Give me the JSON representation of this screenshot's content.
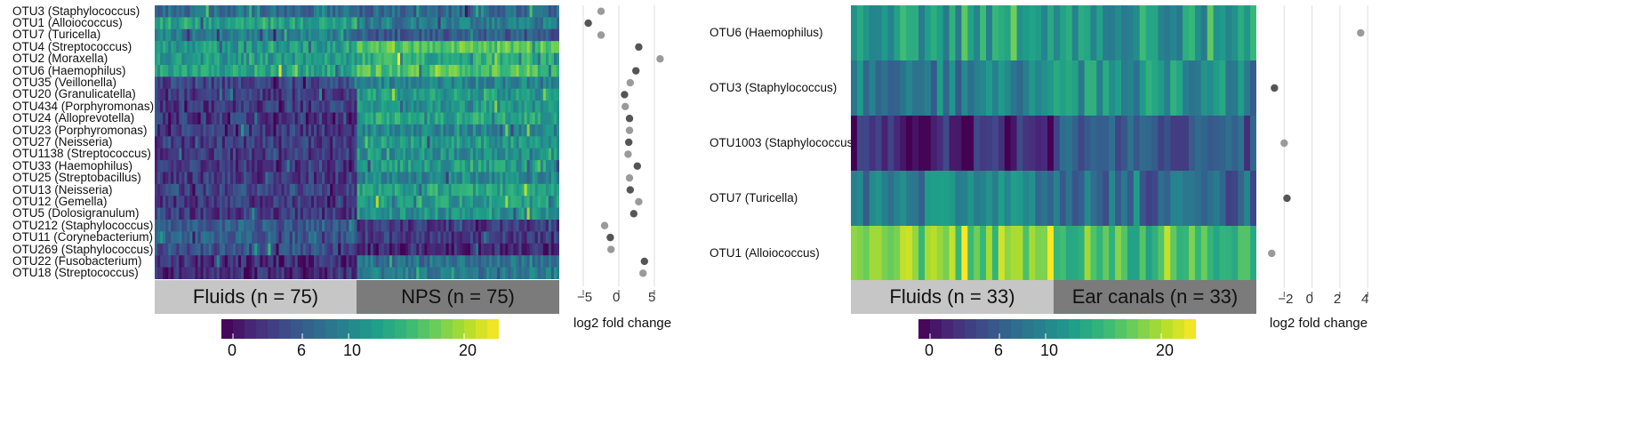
{
  "chart_data": [
    {
      "type": "heatmap",
      "rows": [
        "OTU3 (Staphylococcus)",
        "OTU1 (Alloiococcus)",
        "OTU7 (Turicella)",
        "OTU4 (Streptococcus)",
        "OTU2 (Moraxella)",
        "OTU6 (Haemophilus)",
        "OTU35 (Veillonella)",
        "OTU20 (Granulicatella)",
        "OTU434 (Porphyromonas)",
        "OTU24 (Alloprevotella)",
        "OTU23 (Porphyromonas)",
        "OTU27 (Neisseria)",
        "OTU1138 (Streptococcus)",
        "OTU33 (Haemophilus)",
        "OTU25 (Streptobacillus)",
        "OTU13 (Neisseria)",
        "OTU12 (Gemella)",
        "OTU5 (Dolosigranulum)",
        "OTU212 (Staphylococcus)",
        "OTU11 (Corynebacterium)",
        "OTU269 (Staphylococcus)",
        "OTU22 (Fusobacterium)",
        "OTU18 (Streptococcus)"
      ],
      "row_mean": [
        [
          8,
          7
        ],
        [
          13,
          9
        ],
        [
          9,
          6
        ],
        [
          12,
          17
        ],
        [
          12,
          14
        ],
        [
          13,
          16
        ],
        [
          4,
          10
        ],
        [
          3,
          12
        ],
        [
          3,
          11
        ],
        [
          3,
          13
        ],
        [
          3,
          10
        ],
        [
          3,
          12
        ],
        [
          3,
          11
        ],
        [
          3,
          12
        ],
        [
          3,
          10
        ],
        [
          4,
          13
        ],
        [
          3,
          12
        ],
        [
          3,
          11
        ],
        [
          6,
          3
        ],
        [
          6,
          3
        ],
        [
          5,
          2
        ],
        [
          2,
          8
        ],
        [
          2,
          9
        ]
      ],
      "groups": [
        "Fluids (n = 75)",
        "NPS (n = 75)"
      ],
      "group_colors": [
        "#c6c6c6",
        "#7b7b7b"
      ],
      "colorbar_ticks": [
        0,
        6,
        10,
        20
      ],
      "colorbar_range": [
        -1,
        23
      ],
      "fold_change": [
        -2.5,
        -4.3,
        -2.5,
        2.8,
        5.8,
        2.4,
        1.6,
        0.8,
        0.9,
        1.5,
        1.5,
        1.4,
        1.3,
        2.6,
        1.5,
        1.6,
        2.8,
        2.1,
        -2.0,
        -1.2,
        -1.1,
        3.6,
        3.4
      ],
      "fc_point_colors": [
        "#9a9a9a",
        "#555555",
        "#9a9a9a",
        "#555555",
        "#9a9a9a",
        "#555555",
        "#9a9a9a",
        "#555555",
        "#9a9a9a",
        "#555555",
        "#9a9a9a",
        "#555555",
        "#9a9a9a",
        "#555555",
        "#9a9a9a",
        "#555555",
        "#9a9a9a",
        "#555555",
        "#9a9a9a",
        "#555555",
        "#9a9a9a",
        "#555555",
        "#9a9a9a"
      ],
      "fc_xlim": [
        -6.5,
        6.5
      ],
      "fc_ticks": [
        -5,
        0,
        5
      ],
      "fc_tick_labels": [
        "−5",
        "0",
        "5"
      ],
      "xlabel": "log2 fold change",
      "gridlines": true
    },
    {
      "type": "heatmap",
      "rows": [
        "OTU6 (Haemophilus)",
        "OTU3 (Staphylococcus)",
        "OTU1003 (Staphylococcus)",
        "OTU7 (Turicella)",
        "OTU1 (Alloiococcus)"
      ],
      "row_mean": [
        [
          12,
          12
        ],
        [
          9,
          11
        ],
        [
          1,
          5
        ],
        [
          9,
          7
        ],
        [
          18,
          16
        ]
      ],
      "groups": [
        "Fluids (n = 33)",
        "Ear canals (n = 33)"
      ],
      "group_colors": [
        "#c6c6c6",
        "#7b7b7b"
      ],
      "colorbar_ticks": [
        0,
        6,
        10,
        20
      ],
      "colorbar_range": [
        -1,
        23
      ],
      "fold_change": [
        3.5,
        -2.7,
        -2.0,
        -1.8,
        -2.9
      ],
      "fc_point_colors": [
        "#9a9a9a",
        "#555555",
        "#9a9a9a",
        "#555555",
        "#9a9a9a"
      ],
      "fc_xlim": [
        -3.3,
        4.5
      ],
      "fc_ticks": [
        -2,
        0,
        2,
        4
      ],
      "fc_tick_labels": [
        "−2",
        "0",
        "2",
        "4"
      ],
      "xlabel": "log2 fold change",
      "gridlines": true
    }
  ]
}
